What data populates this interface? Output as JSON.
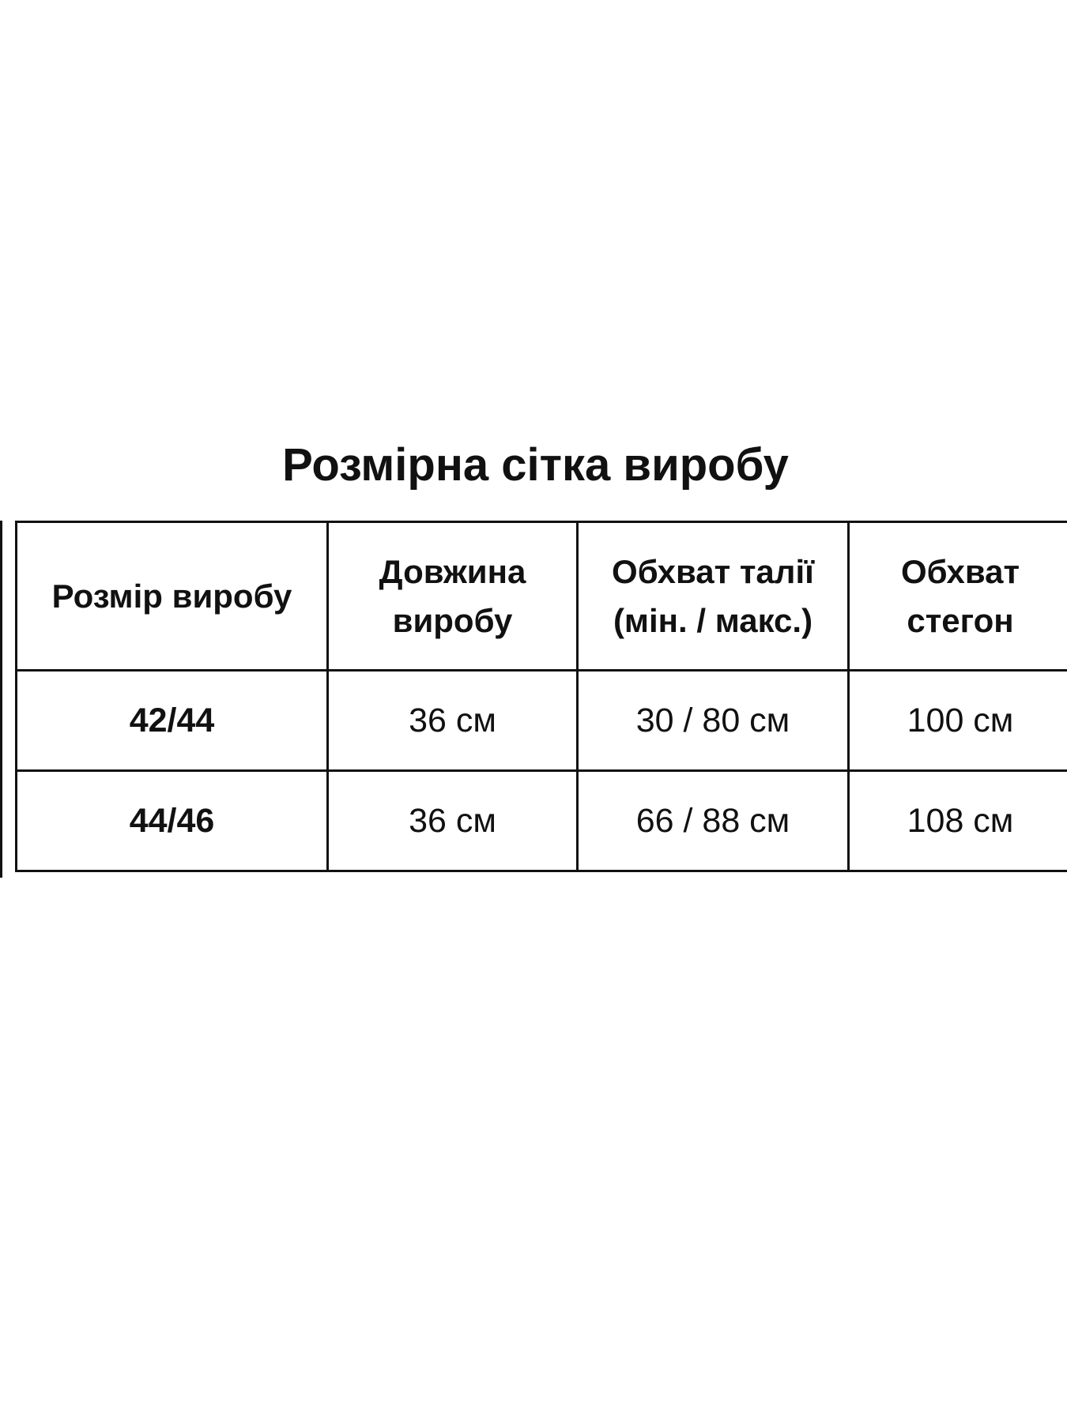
{
  "title": "Розмірна сітка виробу",
  "table": {
    "header": [
      "Розмір виробу",
      "Довжина виробу",
      "Обхват талії (мін. / макс.)",
      "Обхват стегон"
    ],
    "rows": [
      [
        "42/44",
        "36 см",
        "30 / 80 см",
        "100 см"
      ],
      [
        "44/46",
        "36 см",
        "66 / 88 см",
        "108 см"
      ]
    ]
  }
}
